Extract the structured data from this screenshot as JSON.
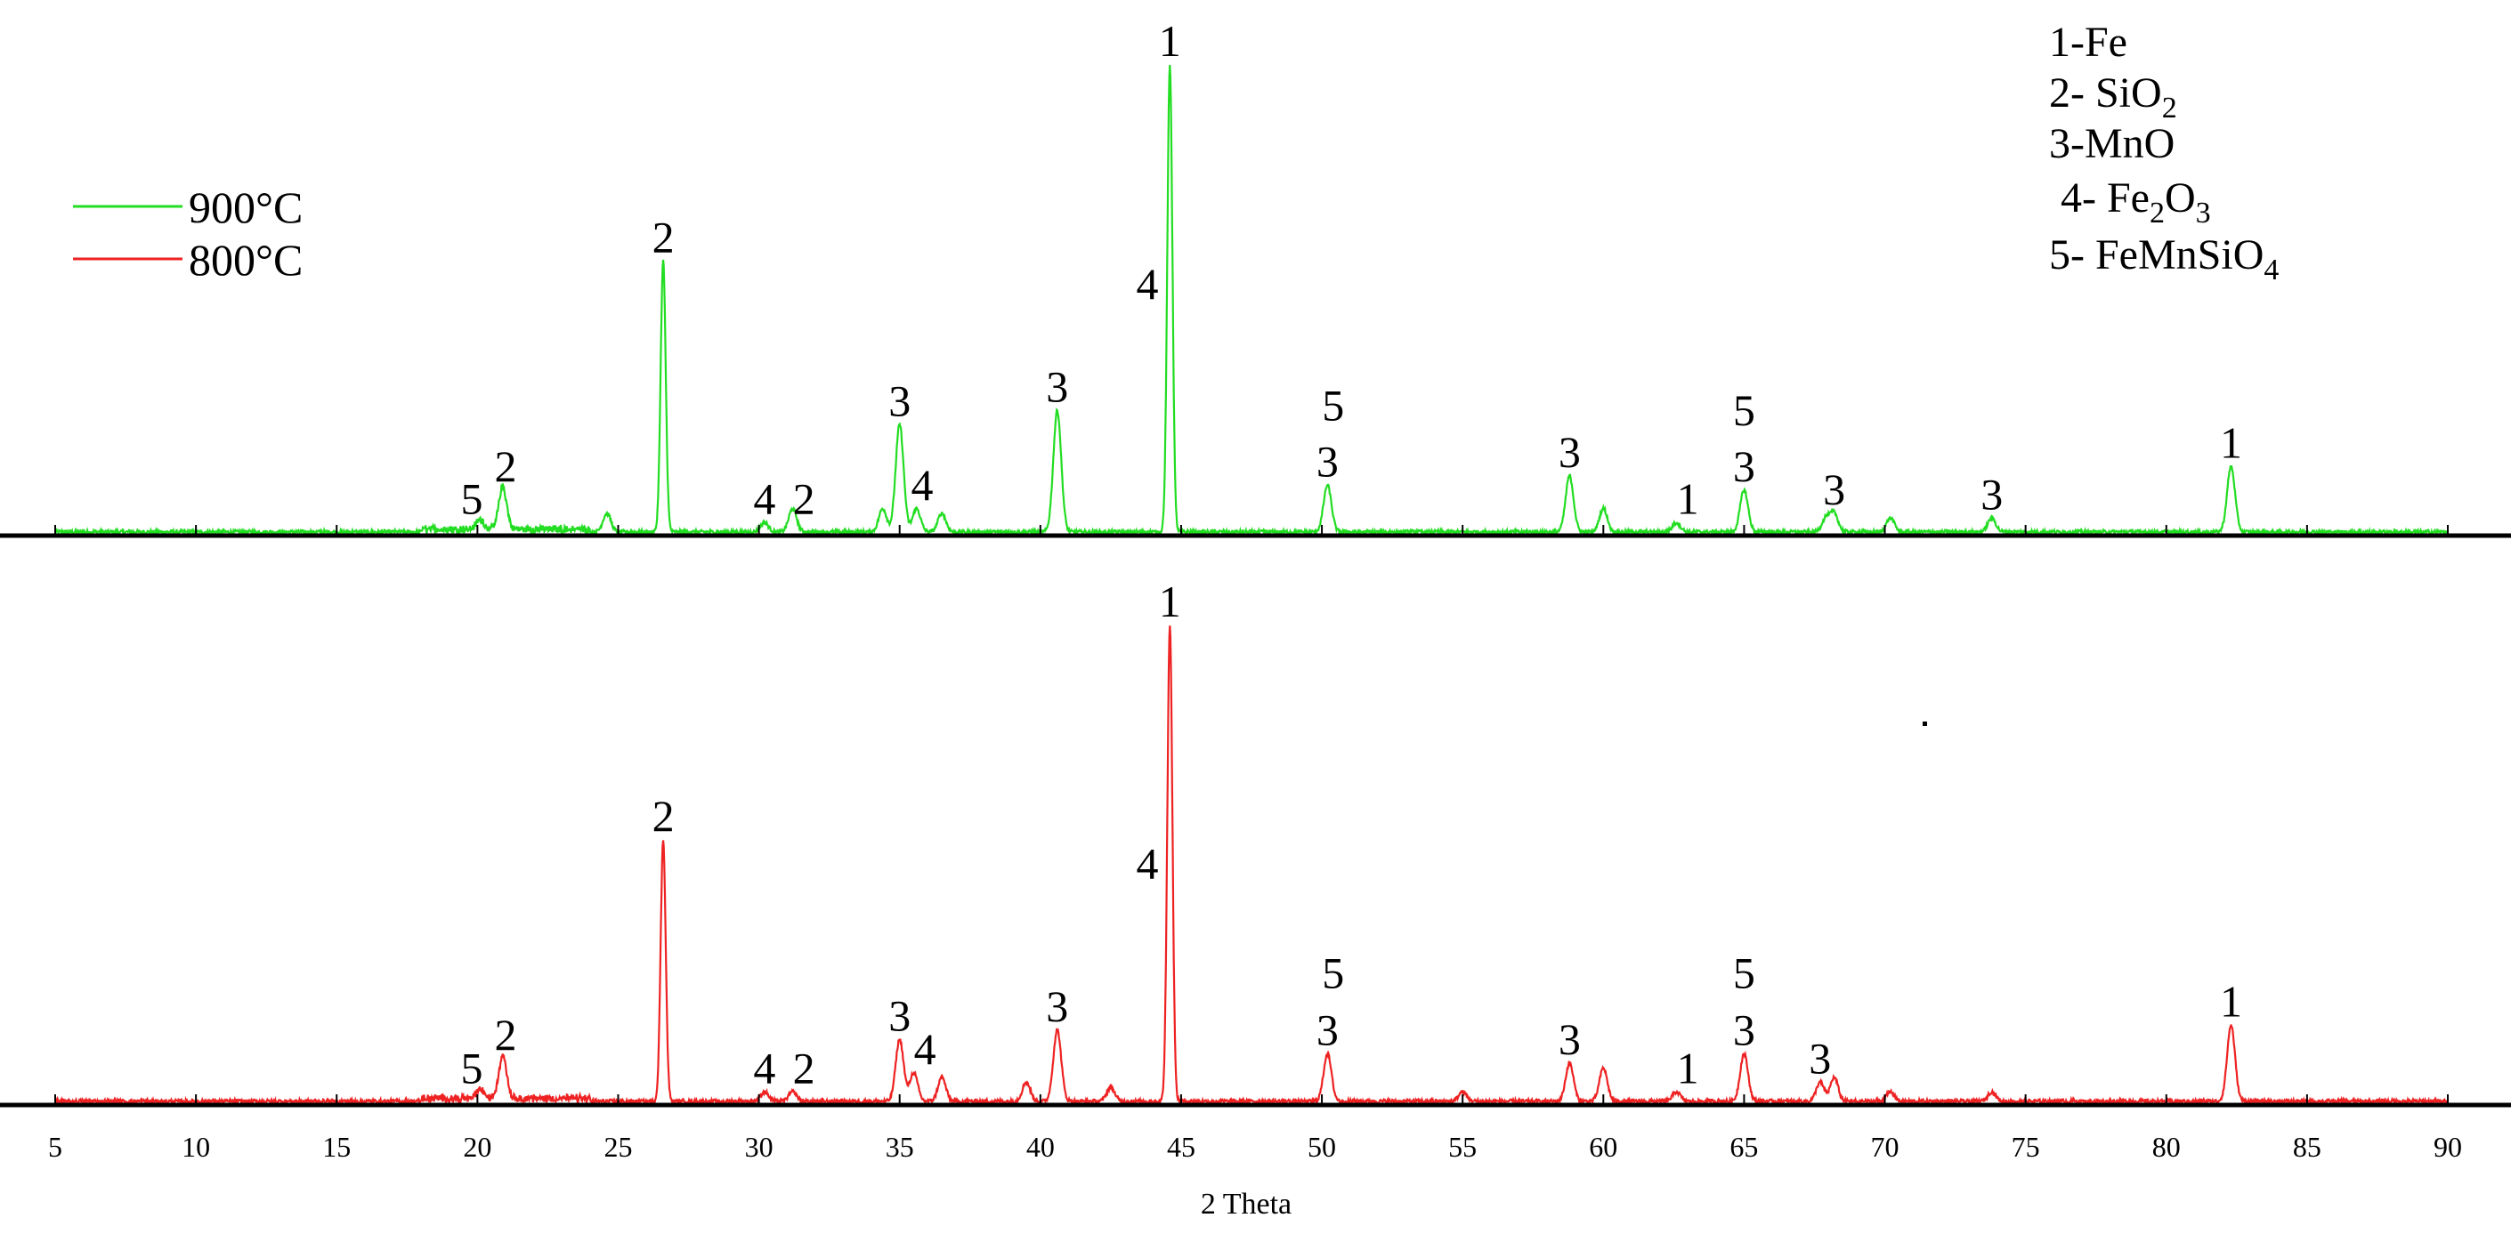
{
  "chart_data": {
    "type": "line",
    "title": "",
    "xlabel": "2 Theta",
    "ylabel": "",
    "xlim": [
      5,
      90
    ],
    "grid": false,
    "legend_position": "top-left",
    "x_ticks": [
      5,
      10,
      15,
      20,
      25,
      30,
      35,
      40,
      45,
      50,
      55,
      60,
      65,
      70,
      75,
      80,
      85,
      90
    ],
    "x_tick_labels": [
      "5",
      "10",
      "15",
      "20",
      "25",
      "30",
      "35",
      "40",
      "45",
      "50",
      "55",
      "60",
      "65",
      "70",
      "75",
      "80",
      "85",
      "90"
    ],
    "series": [
      {
        "name": "900°C",
        "color": "#22dd22",
        "panel": "top",
        "peaks": [
          {
            "x": 20.1,
            "y": 0.02
          },
          {
            "x": 20.9,
            "y": 0.09
          },
          {
            "x": 24.6,
            "y": 0.04
          },
          {
            "x": 26.6,
            "y": 0.58
          },
          {
            "x": 30.2,
            "y": 0.02
          },
          {
            "x": 31.2,
            "y": 0.05
          },
          {
            "x": 34.4,
            "y": 0.05
          },
          {
            "x": 35.0,
            "y": 0.23
          },
          {
            "x": 35.6,
            "y": 0.05
          },
          {
            "x": 36.5,
            "y": 0.04
          },
          {
            "x": 40.6,
            "y": 0.26
          },
          {
            "x": 44.6,
            "y": 1.0
          },
          {
            "x": 50.2,
            "y": 0.1
          },
          {
            "x": 58.8,
            "y": 0.12
          },
          {
            "x": 60.0,
            "y": 0.05
          },
          {
            "x": 62.6,
            "y": 0.02
          },
          {
            "x": 65.0,
            "y": 0.09
          },
          {
            "x": 67.9,
            "y": 0.03
          },
          {
            "x": 68.2,
            "y": 0.04
          },
          {
            "x": 70.2,
            "y": 0.03
          },
          {
            "x": 73.8,
            "y": 0.03
          },
          {
            "x": 82.3,
            "y": 0.14
          }
        ]
      },
      {
        "name": "800°C",
        "color": "#ee2222",
        "panel": "bottom",
        "peaks": [
          {
            "x": 20.1,
            "y": 0.02
          },
          {
            "x": 20.9,
            "y": 0.09
          },
          {
            "x": 26.6,
            "y": 0.55
          },
          {
            "x": 30.2,
            "y": 0.02
          },
          {
            "x": 31.2,
            "y": 0.02
          },
          {
            "x": 35.0,
            "y": 0.13
          },
          {
            "x": 35.5,
            "y": 0.06
          },
          {
            "x": 36.5,
            "y": 0.05
          },
          {
            "x": 39.5,
            "y": 0.04
          },
          {
            "x": 40.6,
            "y": 0.15
          },
          {
            "x": 42.5,
            "y": 0.03
          },
          {
            "x": 44.6,
            "y": 1.0
          },
          {
            "x": 50.2,
            "y": 0.1
          },
          {
            "x": 55.0,
            "y": 0.02
          },
          {
            "x": 58.8,
            "y": 0.08
          },
          {
            "x": 60.0,
            "y": 0.07
          },
          {
            "x": 62.6,
            "y": 0.02
          },
          {
            "x": 65.0,
            "y": 0.1
          },
          {
            "x": 67.7,
            "y": 0.04
          },
          {
            "x": 68.2,
            "y": 0.05
          },
          {
            "x": 70.2,
            "y": 0.02
          },
          {
            "x": 73.8,
            "y": 0.02
          },
          {
            "x": 82.3,
            "y": 0.16
          }
        ]
      }
    ],
    "annotations": [
      {
        "panel": "top",
        "x": 19.8,
        "y": 0.02,
        "text": "5"
      },
      {
        "panel": "top",
        "x": 21.0,
        "y": 0.09,
        "text": "2"
      },
      {
        "panel": "top",
        "x": 26.6,
        "y": 0.58,
        "text": "2"
      },
      {
        "panel": "top",
        "x": 30.2,
        "y": 0.02,
        "text": "4"
      },
      {
        "panel": "top",
        "x": 31.6,
        "y": 0.02,
        "text": "2"
      },
      {
        "panel": "top",
        "x": 35.0,
        "y": 0.23,
        "text": "3"
      },
      {
        "panel": "top",
        "x": 35.8,
        "y": 0.05,
        "text": "4"
      },
      {
        "panel": "top",
        "x": 40.6,
        "y": 0.26,
        "text": "3"
      },
      {
        "panel": "top",
        "x": 44.6,
        "y": 1.0,
        "text": "1"
      },
      {
        "panel": "top",
        "x": 43.8,
        "y": 0.48,
        "text": "4"
      },
      {
        "panel": "top",
        "x": 50.2,
        "y": 0.1,
        "text": "3"
      },
      {
        "panel": "top",
        "x": 50.4,
        "y": 0.22,
        "text": "5"
      },
      {
        "panel": "top",
        "x": 58.8,
        "y": 0.12,
        "text": "3"
      },
      {
        "panel": "top",
        "x": 63.0,
        "y": 0.02,
        "text": "1"
      },
      {
        "panel": "top",
        "x": 65.0,
        "y": 0.09,
        "text": "3"
      },
      {
        "panel": "top",
        "x": 65.0,
        "y": 0.21,
        "text": "5"
      },
      {
        "panel": "top",
        "x": 68.2,
        "y": 0.04,
        "text": "3"
      },
      {
        "panel": "top",
        "x": 73.8,
        "y": 0.03,
        "text": "3"
      },
      {
        "panel": "top",
        "x": 82.3,
        "y": 0.14,
        "text": "1"
      },
      {
        "panel": "bottom",
        "x": 19.8,
        "y": 0.02,
        "text": "5"
      },
      {
        "panel": "bottom",
        "x": 21.0,
        "y": 0.09,
        "text": "2"
      },
      {
        "panel": "bottom",
        "x": 26.6,
        "y": 0.55,
        "text": "2"
      },
      {
        "panel": "bottom",
        "x": 30.2,
        "y": 0.02,
        "text": "4"
      },
      {
        "panel": "bottom",
        "x": 31.6,
        "y": 0.02,
        "text": "2"
      },
      {
        "panel": "bottom",
        "x": 35.0,
        "y": 0.13,
        "text": "3"
      },
      {
        "panel": "bottom",
        "x": 35.9,
        "y": 0.06,
        "text": "4"
      },
      {
        "panel": "bottom",
        "x": 40.6,
        "y": 0.15,
        "text": "3"
      },
      {
        "panel": "bottom",
        "x": 44.6,
        "y": 1.0,
        "text": "1"
      },
      {
        "panel": "bottom",
        "x": 43.8,
        "y": 0.45,
        "text": "4"
      },
      {
        "panel": "bottom",
        "x": 50.2,
        "y": 0.1,
        "text": "3"
      },
      {
        "panel": "bottom",
        "x": 50.4,
        "y": 0.22,
        "text": "5"
      },
      {
        "panel": "bottom",
        "x": 58.8,
        "y": 0.08,
        "text": "3"
      },
      {
        "panel": "bottom",
        "x": 63.0,
        "y": 0.02,
        "text": "1"
      },
      {
        "panel": "bottom",
        "x": 65.0,
        "y": 0.1,
        "text": "3"
      },
      {
        "panel": "bottom",
        "x": 65.0,
        "y": 0.22,
        "text": "5"
      },
      {
        "panel": "bottom",
        "x": 67.7,
        "y": 0.04,
        "text": "3"
      },
      {
        "panel": "bottom",
        "x": 82.3,
        "y": 0.16,
        "text": "1"
      }
    ],
    "phase_key": [
      {
        "prefix": "1-Fe",
        "parts": []
      },
      {
        "prefix": "2- SiO",
        "parts": [
          [
            "2",
            true
          ]
        ]
      },
      {
        "prefix": "3-MnO",
        "parts": []
      },
      {
        "prefix": "4- Fe",
        "parts": [
          [
            "2",
            true
          ],
          [
            "O",
            false
          ],
          [
            "3",
            true
          ]
        ]
      },
      {
        "prefix": "5- FeMnSiO",
        "parts": [
          [
            "4",
            true
          ]
        ]
      }
    ]
  }
}
